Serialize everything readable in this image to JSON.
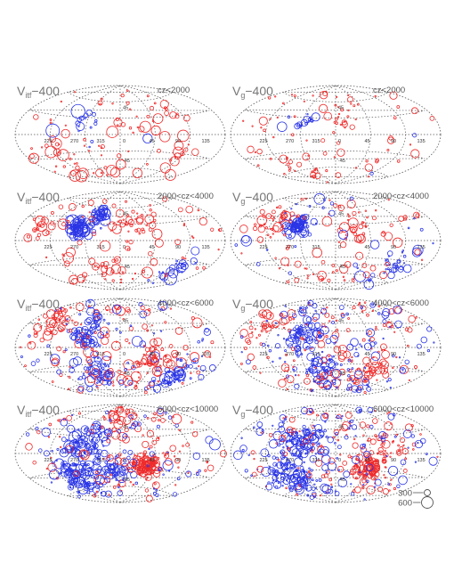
{
  "chart_data": {
    "type": "scatter",
    "projection": "aitoff",
    "grid": true,
    "longitude_labels": [
      "225",
      "270",
      "315",
      "0",
      "45",
      "90",
      "135"
    ],
    "latitude_labels": [
      "45",
      "-45"
    ],
    "colors": {
      "positive": "#ee2a2a",
      "negative": "#2a35e6",
      "grid": "#555555",
      "text": "#333333"
    },
    "legend": {
      "scale": [
        {
          "label": "300",
          "value": 300
        },
        {
          "label": "600",
          "value": 600
        }
      ]
    },
    "panels": [
      {
        "id": "a",
        "row": 0,
        "col": 0,
        "quantity_symbol": "V",
        "quantity_sub": "itf",
        "quantity_tail": "−400",
        "range_label": "cz<2000",
        "distribution": {
          "n_red": 100,
          "n_blue": 18,
          "redMaxR": 6.0,
          "blueMaxR": 7.5,
          "clusters": [
            {
              "color": "blue",
              "lon": 300,
              "lat": 25,
              "s": 16,
              "n": 14
            },
            {
              "color": "red",
              "lon": 20,
              "lat": 25,
              "s": 35,
              "n": 14
            },
            {
              "color": "red",
              "lon": 250,
              "lat": -30,
              "s": 40,
              "n": 18
            },
            {
              "color": "red",
              "lon": 120,
              "lat": -25,
              "s": 30,
              "n": 10
            },
            {
              "color": "red",
              "lon": 90,
              "lat": 35,
              "s": 25,
              "n": 10
            }
          ]
        }
      },
      {
        "id": "b",
        "row": 0,
        "col": 1,
        "quantity_symbol": "V",
        "quantity_sub": "g",
        "quantity_tail": "−400",
        "range_label": "cz<2000",
        "distribution": {
          "n_red": 100,
          "n_blue": 20,
          "redMaxR": 4.0,
          "blueMaxR": 5.0,
          "clusters": [
            {
              "color": "blue",
              "lon": 300,
              "lat": 20,
              "s": 15,
              "n": 14
            },
            {
              "color": "red",
              "lon": 20,
              "lat": 35,
              "s": 25,
              "n": 14
            },
            {
              "color": "red",
              "lon": 250,
              "lat": -40,
              "s": 35,
              "n": 14
            }
          ]
        }
      },
      {
        "id": "c",
        "row": 1,
        "col": 0,
        "quantity_symbol": "V",
        "quantity_sub": "itf",
        "quantity_tail": "−400",
        "range_label": "2000<cz<4000",
        "distribution": {
          "n_red": 140,
          "n_blue": 130,
          "redMaxR": 5.5,
          "blueMaxR": 6.5,
          "clusters": [
            {
              "color": "blue",
              "lon": 285,
              "lat": 20,
              "s": 16,
              "n": 70
            },
            {
              "color": "blue",
              "lon": 315,
              "lat": 45,
              "s": 14,
              "n": 40
            },
            {
              "color": "blue",
              "lon": 120,
              "lat": -40,
              "s": 22,
              "n": 25
            },
            {
              "color": "red",
              "lon": 220,
              "lat": 20,
              "s": 20,
              "n": 20
            },
            {
              "color": "red",
              "lon": 30,
              "lat": 30,
              "s": 25,
              "n": 25
            },
            {
              "color": "red",
              "lon": 330,
              "lat": -45,
              "s": 30,
              "n": 20
            }
          ]
        }
      },
      {
        "id": "d",
        "row": 1,
        "col": 1,
        "quantity_symbol": "V",
        "quantity_sub": "g",
        "quantity_tail": "−400",
        "range_label": "2000<cz<4000",
        "distribution": {
          "n_red": 130,
          "n_blue": 130,
          "redMaxR": 5.0,
          "blueMaxR": 5.5,
          "clusters": [
            {
              "color": "blue",
              "lon": 290,
              "lat": 25,
              "s": 15,
              "n": 70
            },
            {
              "color": "blue",
              "lon": 120,
              "lat": -40,
              "s": 22,
              "n": 30
            },
            {
              "color": "red",
              "lon": 240,
              "lat": 30,
              "s": 25,
              "n": 25
            },
            {
              "color": "red",
              "lon": 40,
              "lat": 30,
              "s": 25,
              "n": 20
            }
          ]
        }
      },
      {
        "id": "e",
        "row": 2,
        "col": 0,
        "quantity_symbol": "V",
        "quantity_sub": "itf",
        "quantity_tail": "−400",
        "range_label": "4000<cz<6000",
        "distribution": {
          "n_red": 190,
          "n_blue": 230,
          "redMaxR": 5.0,
          "blueMaxR": 5.5,
          "clusters": [
            {
              "color": "blue",
              "lon": 300,
              "lat": 25,
              "s": 25,
              "n": 60
            },
            {
              "color": "blue",
              "lon": 310,
              "lat": -40,
              "s": 25,
              "n": 50
            },
            {
              "color": "blue",
              "lon": 130,
              "lat": -40,
              "s": 22,
              "n": 50
            },
            {
              "color": "red",
              "lon": 220,
              "lat": 40,
              "s": 25,
              "n": 35
            },
            {
              "color": "red",
              "lon": 60,
              "lat": -20,
              "s": 30,
              "n": 40
            }
          ]
        }
      },
      {
        "id": "f",
        "row": 2,
        "col": 1,
        "quantity_symbol": "V",
        "quantity_sub": "g",
        "quantity_tail": "−400",
        "range_label": "4000<cz<6000",
        "distribution": {
          "n_red": 200,
          "n_blue": 230,
          "redMaxR": 4.5,
          "blueMaxR": 4.5,
          "clusters": [
            {
              "color": "blue",
              "lon": 300,
              "lat": 20,
              "s": 25,
              "n": 60
            },
            {
              "color": "blue",
              "lon": 330,
              "lat": -35,
              "s": 30,
              "n": 50
            },
            {
              "color": "red",
              "lon": 70,
              "lat": -45,
              "s": 25,
              "n": 40
            },
            {
              "color": "red",
              "lon": 220,
              "lat": 30,
              "s": 25,
              "n": 30
            }
          ]
        }
      },
      {
        "id": "g",
        "row": 3,
        "col": 0,
        "quantity_symbol": "V",
        "quantity_sub": "itf",
        "quantity_tail": "−400",
        "range_label": "6000<cz<10000",
        "distribution": {
          "n_red": 220,
          "n_blue": 320,
          "redMaxR": 5.0,
          "blueMaxR": 5.5,
          "clusters": [
            {
              "color": "blue",
              "lon": 300,
              "lat": 20,
              "s": 30,
              "n": 80
            },
            {
              "color": "blue",
              "lon": 270,
              "lat": -35,
              "s": 30,
              "n": 110
            },
            {
              "color": "blue",
              "lon": 345,
              "lat": -30,
              "s": 25,
              "n": 40
            },
            {
              "color": "red",
              "lon": 50,
              "lat": -20,
              "s": 20,
              "n": 100
            },
            {
              "color": "red",
              "lon": 0,
              "lat": 60,
              "s": 40,
              "n": 30
            }
          ]
        }
      },
      {
        "id": "h",
        "row": 3,
        "col": 1,
        "quantity_symbol": "V",
        "quantity_sub": "g",
        "quantity_tail": "−400",
        "range_label": "6000<cz<10000",
        "distribution": {
          "n_red": 240,
          "n_blue": 330,
          "redMaxR": 4.0,
          "blueMaxR": 4.5,
          "clusters": [
            {
              "color": "blue",
              "lon": 300,
              "lat": 20,
              "s": 30,
              "n": 90
            },
            {
              "color": "blue",
              "lon": 270,
              "lat": -35,
              "s": 30,
              "n": 110
            },
            {
              "color": "red",
              "lon": 60,
              "lat": -25,
              "s": 22,
              "n": 110
            },
            {
              "color": "red",
              "lon": 90,
              "lat": 20,
              "s": 30,
              "n": 30
            }
          ]
        }
      }
    ]
  }
}
